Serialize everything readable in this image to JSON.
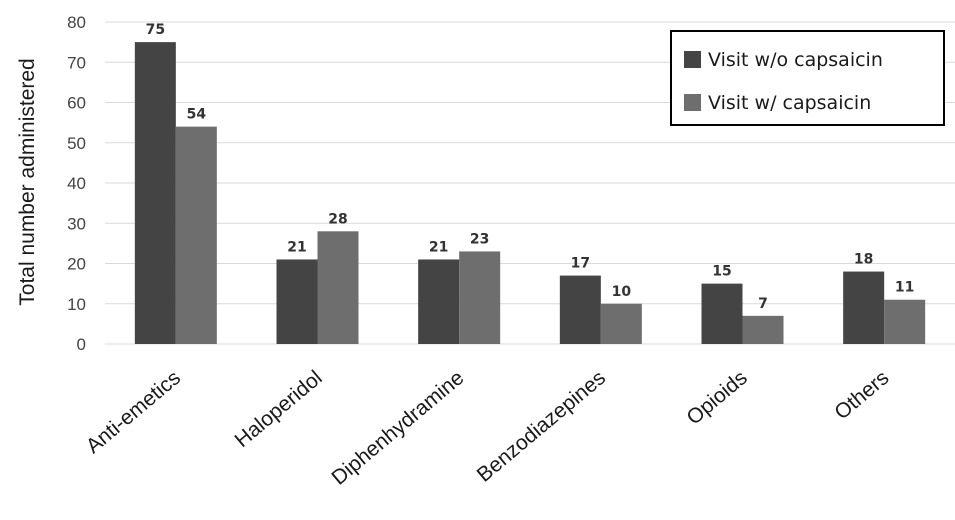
{
  "chart_data": {
    "type": "bar",
    "ylabel": "Total number administered",
    "ylim": [
      0,
      80
    ],
    "yticks": [
      0,
      10,
      20,
      30,
      40,
      50,
      60,
      70,
      80
    ],
    "grid": true,
    "legend_position": "top-right",
    "categories": [
      "Anti-emetics",
      "Haloperidol",
      "Diphenhydramine",
      "Benzodiazepines",
      "Opioids",
      "Others"
    ],
    "series": [
      {
        "name": "Visit w/o capsaicin",
        "color": "#444444",
        "values": [
          75,
          21,
          21,
          17,
          15,
          18
        ]
      },
      {
        "name": "Visit w/ capsaicin",
        "color": "#6e6e6e",
        "values": [
          54,
          28,
          23,
          10,
          7,
          11
        ]
      }
    ]
  }
}
